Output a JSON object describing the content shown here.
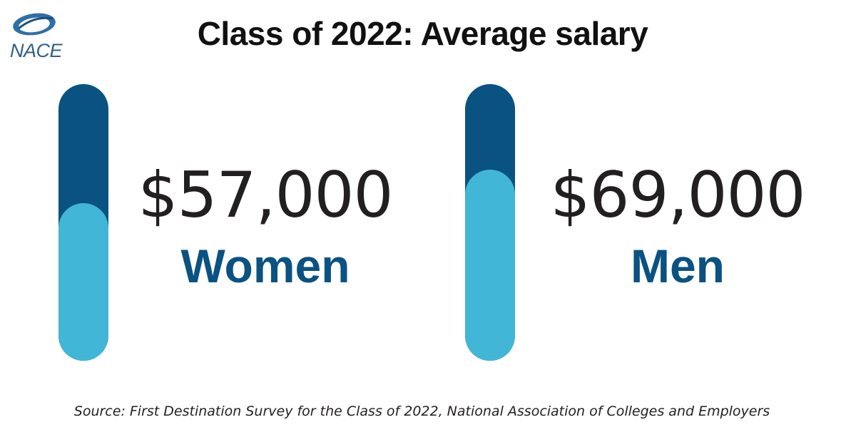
{
  "logo": {
    "text": "NACE"
  },
  "colors": {
    "track": "#0a5282",
    "fill": "#41b6d6",
    "label": "#0a5282",
    "value": "#231f20"
  },
  "chart_data": {
    "type": "bar",
    "title": "Class of 2022: Average salary",
    "categories": [
      "Women",
      "Men"
    ],
    "values": [
      57000,
      69000
    ],
    "value_labels": [
      "$57,000",
      "$69,000"
    ],
    "fill_fraction": [
      0.57,
      0.69
    ],
    "source": "Source: First Destination Survey for the Class of 2022, National Association of Colleges and Employers"
  }
}
